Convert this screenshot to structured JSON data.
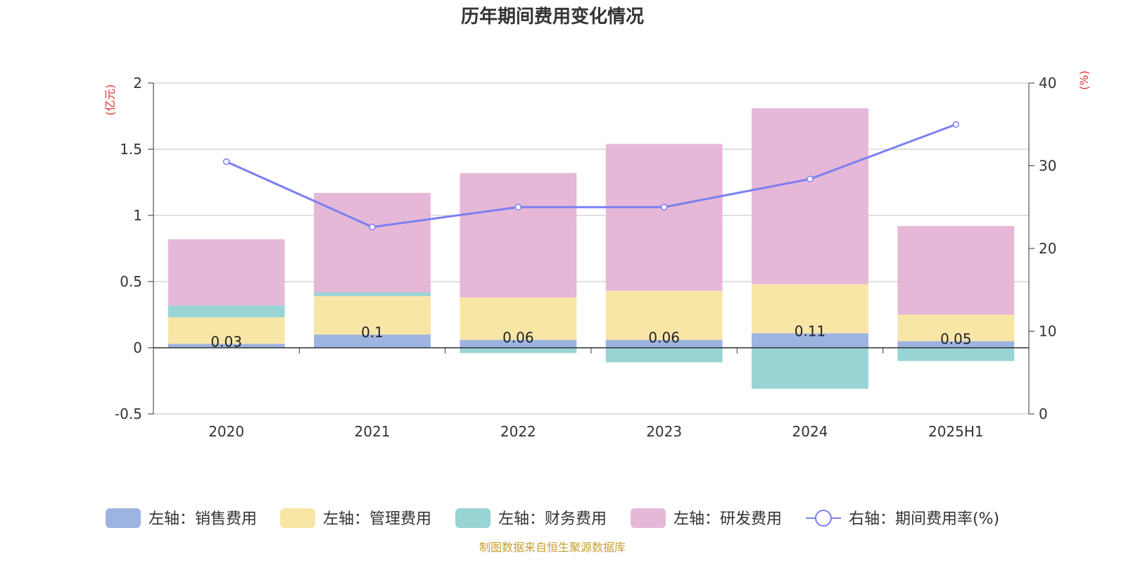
{
  "chart_data": {
    "type": "bar",
    "title": "历年期间费用变化情况",
    "categories": [
      "2020",
      "2021",
      "2022",
      "2023",
      "2024",
      "2025H1"
    ],
    "y_left_label": "(亿元)",
    "y_right_label": "(%)",
    "y_left_ticks": [
      "2",
      "1.5",
      "1",
      "0.5",
      "0",
      "-0.5"
    ],
    "y_right_ticks": [
      "40",
      "30",
      "20",
      "10",
      "0"
    ],
    "ylim_left": [
      -0.5,
      2
    ],
    "ylim_right": [
      0,
      40
    ],
    "grid": true,
    "legend_position": "bottom",
    "series": [
      {
        "name": "左轴：销售费用",
        "axis": "left",
        "type": "bar",
        "stacked": true,
        "color": "#9db4e0",
        "values": [
          0.03,
          0.1,
          0.06,
          0.06,
          0.11,
          0.05
        ],
        "labels": [
          "0.03",
          "0.1",
          "0.06",
          "0.06",
          "0.11",
          "0.05"
        ]
      },
      {
        "name": "左轴：管理费用",
        "axis": "left",
        "type": "bar",
        "stacked": true,
        "color": "#f8e6a6",
        "values": [
          0.2,
          0.29,
          0.32,
          0.37,
          0.37,
          0.2
        ]
      },
      {
        "name": "左轴：财务费用",
        "axis": "left",
        "type": "bar",
        "stacked": true,
        "color": "#99d4d4",
        "values": [
          0.09,
          0.03,
          -0.04,
          -0.11,
          -0.31,
          -0.1
        ]
      },
      {
        "name": "左轴：研发费用",
        "axis": "left",
        "type": "bar",
        "stacked": true,
        "color": "#e6b8d8",
        "values": [
          0.5,
          0.75,
          0.94,
          1.11,
          1.33,
          0.67
        ]
      },
      {
        "name": "右轴：期间费用率(%)",
        "axis": "right",
        "type": "line",
        "color": "#7b7ff0",
        "values": [
          30.5,
          22.6,
          25.0,
          25.0,
          28.4,
          35.0
        ]
      }
    ],
    "source": "制图数据来自恒生聚源数据库"
  }
}
